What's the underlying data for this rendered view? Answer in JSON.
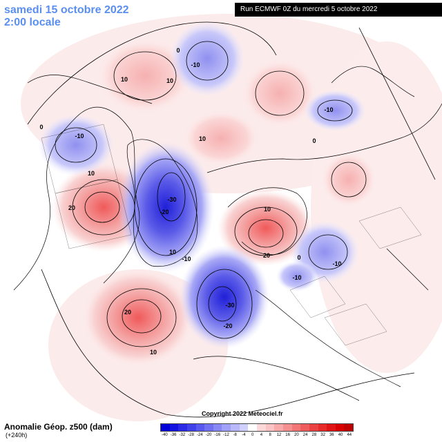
{
  "header": {
    "date": "samedi 15 octobre 2022",
    "time": "2:00 locale",
    "run": "Run ECMWF 0Z du mercredi 5 octobre 2022"
  },
  "footer": {
    "title": "Anomalie Géop. z500 (dam)",
    "lead": "(+240h)",
    "copyright": "Copyright 2022 Meteociel.fr"
  },
  "colorbar": {
    "ticks": [
      "-40",
      "-36",
      "-32",
      "-28",
      "-24",
      "-20",
      "-16",
      "-12",
      "-8",
      "-4",
      "0",
      "4",
      "8",
      "12",
      "16",
      "20",
      "24",
      "28",
      "32",
      "36",
      "40",
      "44"
    ],
    "colors": [
      "#0000d8",
      "#1414e0",
      "#2a2ae6",
      "#4040ea",
      "#5858ee",
      "#7070f2",
      "#8888f5",
      "#a0a0f8",
      "#b8b8fa",
      "#d0d0fc",
      "#ffffff",
      "#fcd8d8",
      "#fac4c4",
      "#f8aaaa",
      "#f59090",
      "#f27676",
      "#ee5c5c",
      "#ea4242",
      "#e62a2a",
      "#e01414",
      "#d80000",
      "#c00000"
    ]
  },
  "contour_labels": [
    {
      "text": "10"
    },
    {
      "text": "-10"
    },
    {
      "text": "0"
    },
    {
      "text": "10"
    },
    {
      "text": "-10"
    },
    {
      "text": "0"
    },
    {
      "text": "-10"
    },
    {
      "text": "10"
    },
    {
      "text": "20"
    },
    {
      "text": "10"
    },
    {
      "text": "-30"
    },
    {
      "text": "-20"
    },
    {
      "text": "-10"
    },
    {
      "text": "10"
    },
    {
      "text": "20"
    },
    {
      "text": "-10"
    },
    {
      "text": "-10"
    },
    {
      "text": "20"
    },
    {
      "text": "10"
    },
    {
      "text": "-30"
    },
    {
      "text": "-20"
    },
    {
      "text": "0"
    },
    {
      "text": "10"
    },
    {
      "text": "0"
    }
  ],
  "colors": {
    "title": "#5a8ff0",
    "positive": "#f08080",
    "negative": "#6060e8"
  }
}
